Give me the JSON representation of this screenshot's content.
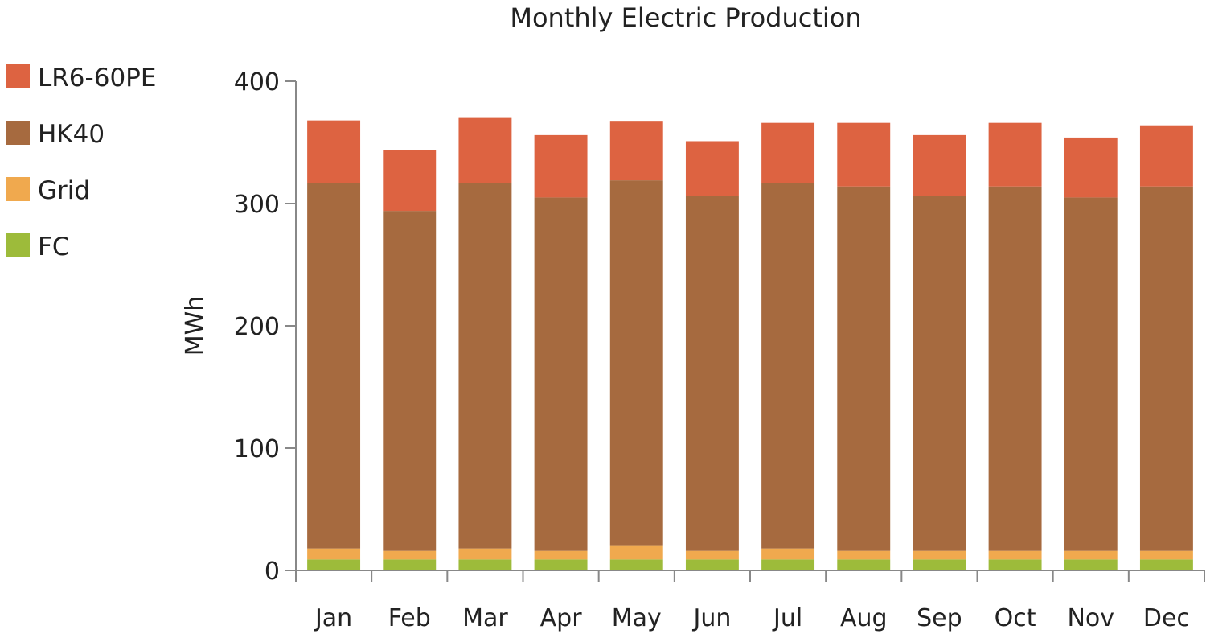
{
  "chart_data": {
    "type": "bar",
    "stacked": true,
    "title": "Monthly Electric Production",
    "xlabel": "",
    "ylabel": "MWh",
    "ylim": [
      0,
      400
    ],
    "yticks": [
      "0",
      "100",
      "200",
      "300",
      "400"
    ],
    "categories": [
      "Jan",
      "Feb",
      "Mar",
      "Apr",
      "May",
      "Jun",
      "Jul",
      "Aug",
      "Sep",
      "Oct",
      "Nov",
      "Dec"
    ],
    "legend_position": "left",
    "series": [
      {
        "name": "FC",
        "color": "#9dbb3a",
        "values": [
          9,
          9,
          9,
          9,
          9,
          9,
          9,
          9,
          9,
          9,
          9,
          9
        ]
      },
      {
        "name": "Grid",
        "color": "#f0a94e",
        "values": [
          9,
          7,
          9,
          7,
          11,
          7,
          9,
          7,
          7,
          7,
          7,
          7
        ]
      },
      {
        "name": "HK40",
        "color": "#a66a3f",
        "values": [
          299,
          278,
          299,
          289,
          299,
          290,
          299,
          298,
          290,
          298,
          289,
          298
        ]
      },
      {
        "name": "LR6-60PE",
        "color": "#dd6341",
        "values": [
          51,
          50,
          53,
          51,
          48,
          45,
          49,
          52,
          50,
          52,
          49,
          50
        ]
      }
    ],
    "legend_order": [
      "LR6-60PE",
      "HK40",
      "Grid",
      "FC"
    ]
  }
}
